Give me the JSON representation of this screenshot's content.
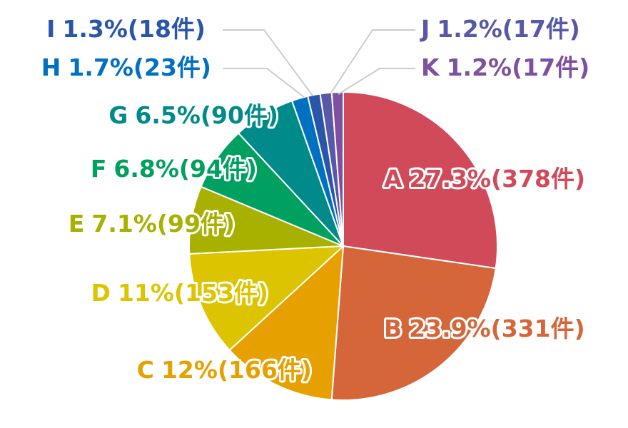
{
  "chart_data": {
    "type": "pie",
    "categories": [
      "A",
      "B",
      "C",
      "D",
      "E",
      "F",
      "G",
      "H",
      "I",
      "J",
      "K"
    ],
    "values": [
      27.3,
      23.9,
      12,
      11,
      7.1,
      6.8,
      6.5,
      1.7,
      1.3,
      1.2,
      1.2
    ],
    "value_labels": [
      "27.3%(378件)",
      "23.9%(331件)",
      "12%(166件)",
      "11%(153件)",
      "7.1%(99件)",
      "6.8%(94件)",
      "6.5%(90件)",
      "1.7%(23件)",
      "1.3%(18件)",
      "1.2%(17件)",
      "1.2%(17件)"
    ],
    "colors": [
      "#d04a5a",
      "#d4663a",
      "#e6a000",
      "#dcc400",
      "#a8b000",
      "#00a060",
      "#008a8a",
      "#0070c0",
      "#2a56a8",
      "#5858a8",
      "#80509e"
    ]
  }
}
